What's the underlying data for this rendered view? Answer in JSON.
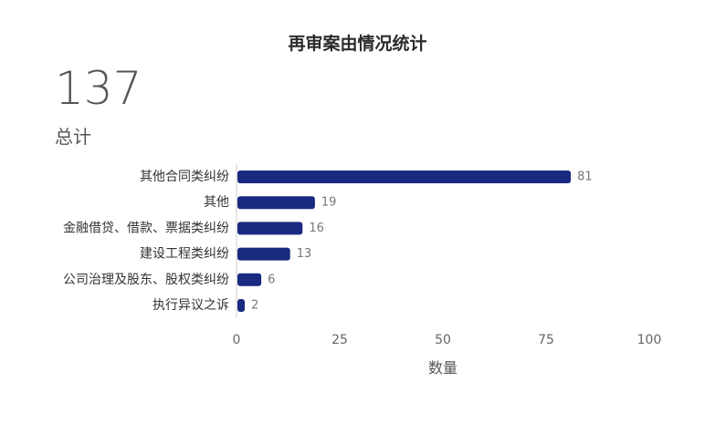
{
  "chart_data": {
    "type": "bar",
    "orientation": "horizontal",
    "title": "再审案由情况统计",
    "summary": {
      "value": "137",
      "label": "总计"
    },
    "categories": [
      "其他合同类纠纷",
      "其他",
      "金融借贷、借款、票据类纠纷",
      "建设工程类纠纷",
      "公司治理及股东、股权类纠纷",
      "执行异议之诉"
    ],
    "values": [
      81,
      19,
      16,
      13,
      6,
      2
    ],
    "xlabel": "数量",
    "ylabel": "",
    "xlim": [
      0,
      100
    ],
    "xticks": [
      0,
      25,
      50,
      75,
      100
    ],
    "grid": false,
    "bar_color": "#1a2a80"
  }
}
